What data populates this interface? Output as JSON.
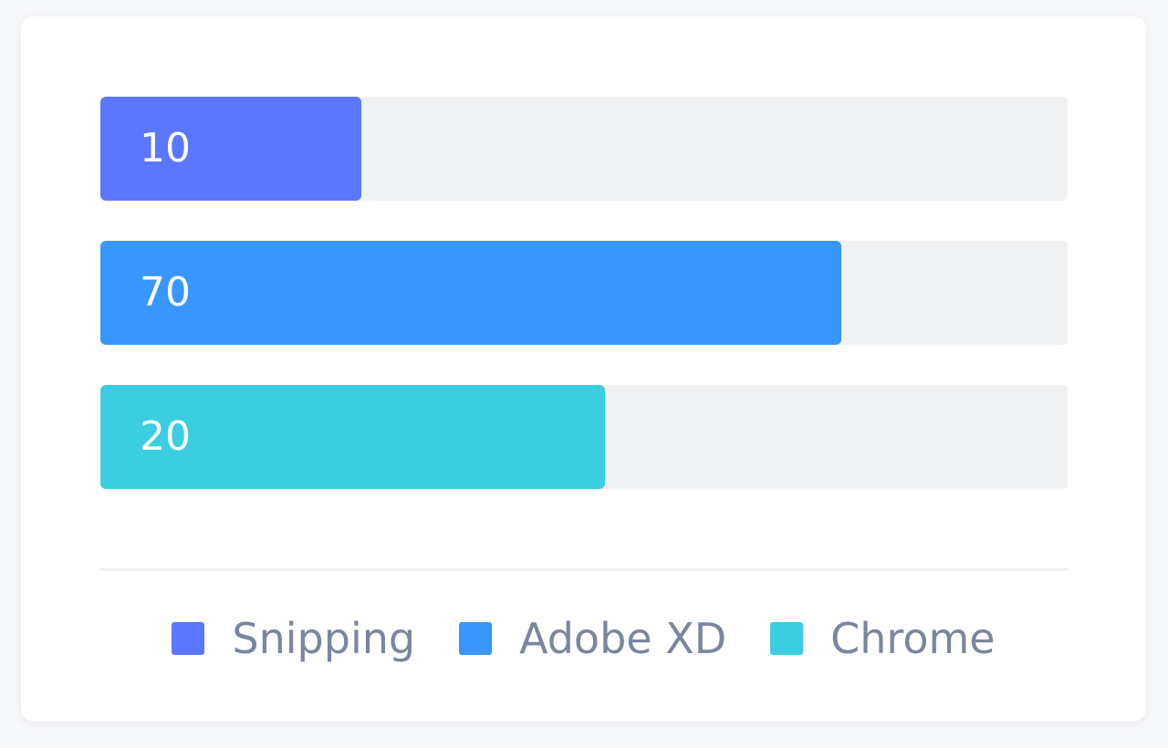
{
  "chart_data": {
    "type": "bar",
    "orientation": "horizontal",
    "categories": [
      "Snipping",
      "Adobe XD",
      "Chrome"
    ],
    "values": [
      10,
      70,
      20
    ],
    "progress_fraction": [
      0.27,
      0.766,
      0.522
    ],
    "colors": [
      "#5b76ff",
      "#3797fe",
      "#3bcde0"
    ],
    "track_color": "#f0f1f3",
    "legend": "bottom-center"
  },
  "legend": [
    {
      "label": "Snipping",
      "color": "#5b76ff"
    },
    {
      "label": "Adobe XD",
      "color": "#3797fe"
    },
    {
      "label": "Chrome",
      "color": "#3bcde0"
    }
  ]
}
